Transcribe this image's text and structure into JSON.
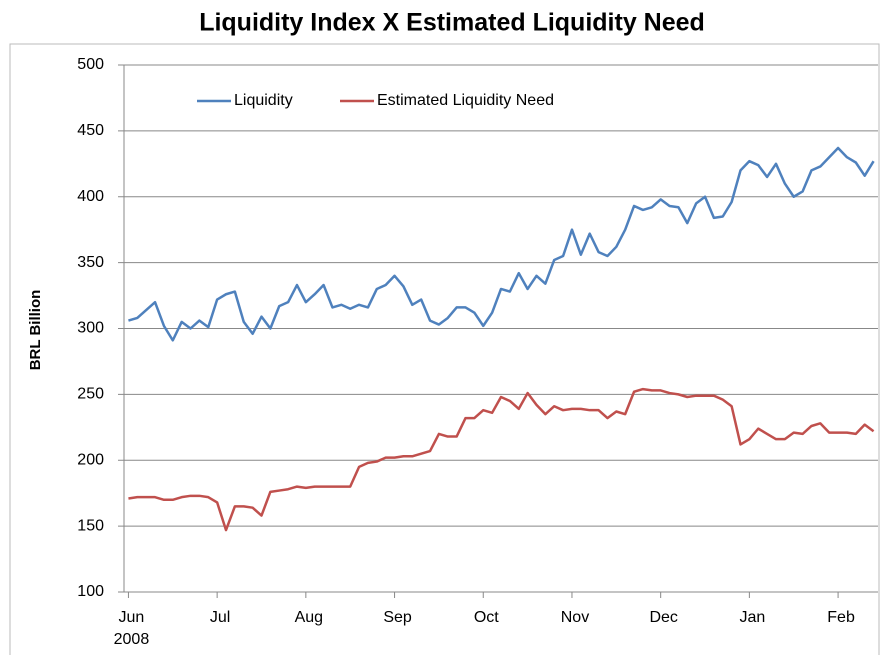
{
  "chart_data": {
    "type": "line",
    "title": "Liquidity Index X Estimated Liquidity Need",
    "ylabel": "BRL Billion",
    "x_sublabel": "2008",
    "x": [
      0,
      0.1,
      0.2,
      0.3,
      0.4,
      0.5,
      0.6,
      0.7,
      0.8,
      0.9,
      1,
      1.1,
      1.2,
      1.3,
      1.4,
      1.5,
      1.6,
      1.7,
      1.8,
      1.9,
      2,
      2.1,
      2.2,
      2.3,
      2.4,
      2.5,
      2.6,
      2.7,
      2.8,
      2.9,
      3,
      3.1,
      3.2,
      3.3,
      3.4,
      3.5,
      3.6,
      3.7,
      3.8,
      3.9,
      4,
      4.1,
      4.2,
      4.3,
      4.4,
      4.5,
      4.6,
      4.7,
      4.8,
      4.9,
      5,
      5.1,
      5.2,
      5.3,
      5.4,
      5.5,
      5.6,
      5.7,
      5.8,
      5.9,
      6,
      6.1,
      6.2,
      6.3,
      6.4,
      6.5,
      6.6,
      6.7,
      6.8,
      6.9,
      7,
      7.1,
      7.2,
      7.3,
      7.4,
      7.5,
      7.6,
      7.7,
      7.8,
      7.9,
      8,
      8.1,
      8.2,
      8.3,
      8.4
    ],
    "series": [
      {
        "name": "Liquidity",
        "color": "#4f81bd",
        "values": [
          306,
          308,
          314,
          320,
          302,
          291,
          305,
          300,
          306,
          301,
          322,
          326,
          328,
          305,
          296,
          309,
          300,
          317,
          320,
          333,
          320,
          326,
          333,
          316,
          318,
          315,
          318,
          316,
          330,
          333,
          340,
          332,
          318,
          322,
          306,
          303,
          308,
          316,
          316,
          312,
          302,
          312,
          330,
          328,
          342,
          330,
          340,
          334,
          352,
          355,
          375,
          356,
          372,
          358,
          355,
          362,
          375,
          393,
          390,
          392,
          398,
          393,
          392,
          380,
          395,
          400,
          384,
          385,
          396,
          420,
          427,
          424,
          415,
          425,
          410,
          400,
          404,
          420,
          423,
          430,
          437,
          430,
          426,
          416,
          427
        ]
      },
      {
        "name": "Estimated Liquidity Need",
        "color": "#c0504d",
        "values": [
          171,
          172,
          172,
          172,
          170,
          170,
          172,
          173,
          173,
          172,
          168,
          147,
          165,
          165,
          164,
          158,
          176,
          177,
          178,
          180,
          179,
          180,
          180,
          180,
          180,
          180,
          195,
          198,
          199,
          202,
          202,
          203,
          203,
          205,
          207,
          220,
          218,
          218,
          232,
          232,
          238,
          236,
          248,
          245,
          239,
          251,
          242,
          235,
          241,
          238,
          239,
          239,
          238,
          238,
          232,
          237,
          235,
          252,
          254,
          253,
          253,
          251,
          250,
          248,
          249,
          249,
          249,
          246,
          241,
          212,
          216,
          224,
          220,
          216,
          216,
          221,
          220,
          226,
          228,
          221,
          221,
          221,
          220,
          227,
          222
        ]
      }
    ],
    "xlim": [
      -0.05,
      8.45
    ],
    "xticks": [
      {
        "value": 0,
        "label": "Jun"
      },
      {
        "value": 1,
        "label": "Jul"
      },
      {
        "value": 2,
        "label": "Aug"
      },
      {
        "value": 3,
        "label": "Sep"
      },
      {
        "value": 4,
        "label": "Oct"
      },
      {
        "value": 5,
        "label": "Nov"
      },
      {
        "value": 6,
        "label": "Dec"
      },
      {
        "value": 7,
        "label": "Jan"
      },
      {
        "value": 8,
        "label": "Feb"
      }
    ],
    "ylim": [
      100,
      500
    ],
    "yticks": [
      100,
      150,
      200,
      250,
      300,
      350,
      400,
      450,
      500
    ],
    "grid": true,
    "legend": "top"
  }
}
